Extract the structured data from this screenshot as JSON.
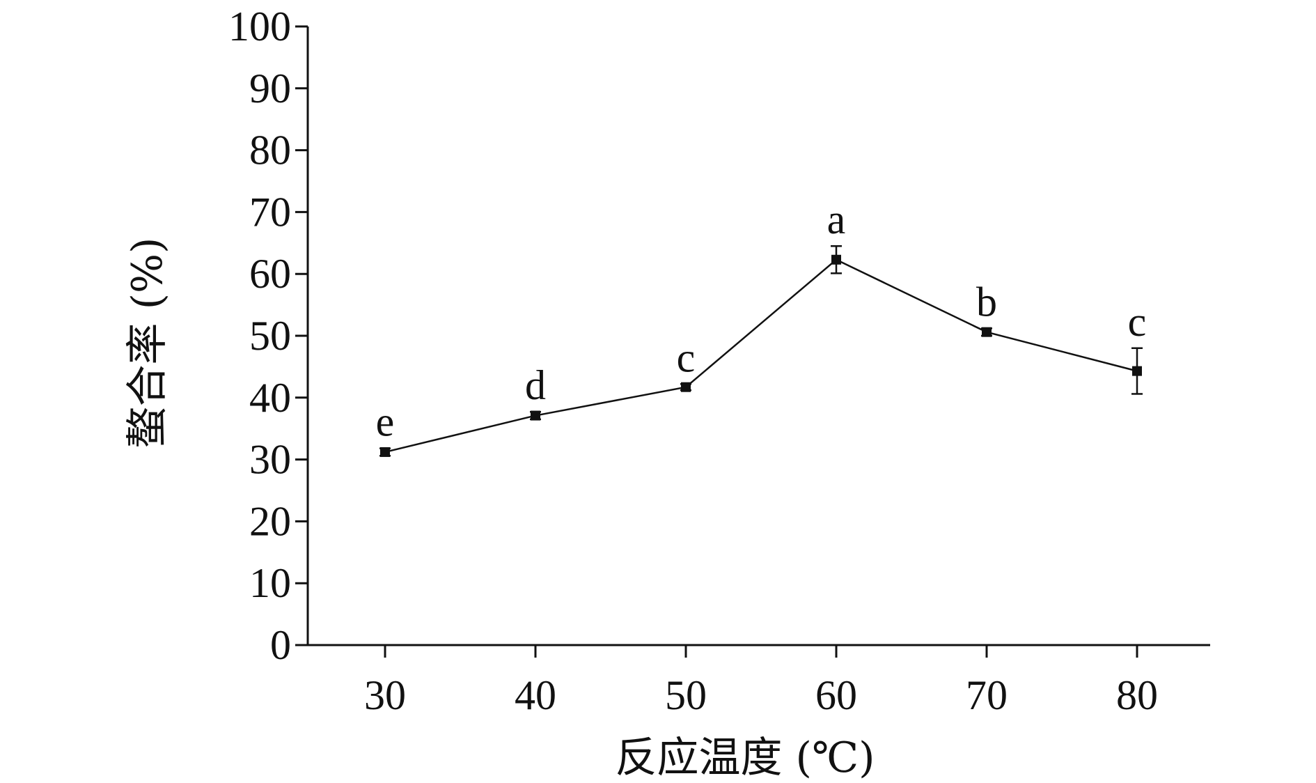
{
  "chart_data": {
    "type": "line",
    "x": [
      30,
      40,
      50,
      60,
      70,
      80
    ],
    "series": [
      {
        "values": [
          31.2,
          37.1,
          41.7,
          62.3,
          50.6,
          44.3
        ],
        "error": [
          0.6,
          0.6,
          0.5,
          2.2,
          0.6,
          3.7
        ],
        "labels": [
          "e",
          "d",
          "c",
          "a",
          "b",
          "c"
        ],
        "color": "#111111",
        "marker": "square"
      }
    ],
    "xlabel": "反应温度 (℃)",
    "ylabel": "螯合率 (%)",
    "xticks": [
      "30",
      "40",
      "50",
      "60",
      "70",
      "80"
    ],
    "yticks": [
      "0",
      "10",
      "20",
      "30",
      "40",
      "50",
      "60",
      "70",
      "80",
      "90",
      "100"
    ],
    "xlim": [
      25,
      85
    ],
    "ylim": [
      0,
      100
    ],
    "grid": false
  }
}
